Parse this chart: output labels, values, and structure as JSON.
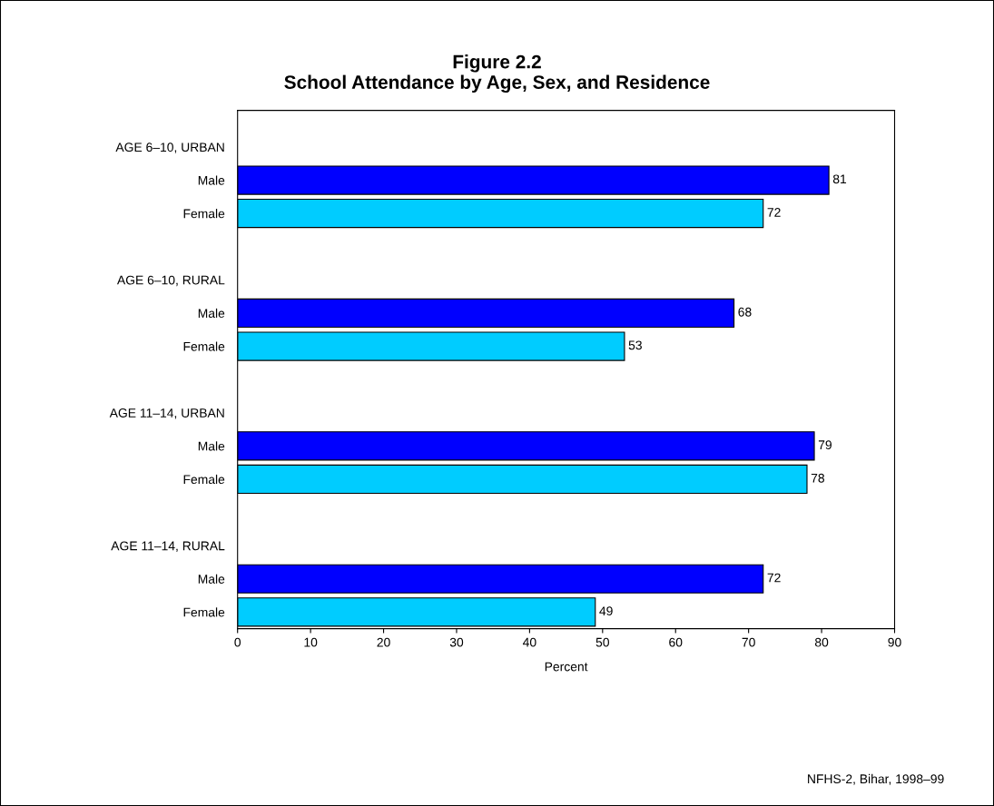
{
  "chart_data": {
    "type": "bar",
    "orientation": "horizontal",
    "title": "Figure 2.2\nSchool Attendance by Age, Sex, and Residence",
    "categories": [
      "AGE 6–10, URBAN",
      "Male",
      "Female",
      null,
      "AGE 6–10, RURAL",
      "Male",
      "Female",
      null,
      "AGE 11–14, URBAN",
      "Male",
      "Female",
      null,
      "AGE 11–14, RURAL",
      "Male",
      "Female"
    ],
    "values": [
      null,
      81,
      72,
      null,
      null,
      68,
      53,
      null,
      null,
      79,
      78,
      null,
      null,
      72,
      49
    ],
    "colors": [
      null,
      "#0000ff",
      "#00ccff",
      null,
      null,
      "#0000ff",
      "#00ccff",
      null,
      null,
      "#0000ff",
      "#00ccff",
      null,
      null,
      "#0000ff",
      "#00ccff"
    ],
    "data_labels": true,
    "xlim": [
      0,
      90
    ],
    "xticks": [
      0,
      10,
      20,
      30,
      40,
      50,
      60,
      70,
      80,
      90
    ],
    "xlabel": "Percent",
    "grid": false,
    "legend": false,
    "annotations": [
      "NFHS-2, Bihar, 1998–99"
    ]
  }
}
